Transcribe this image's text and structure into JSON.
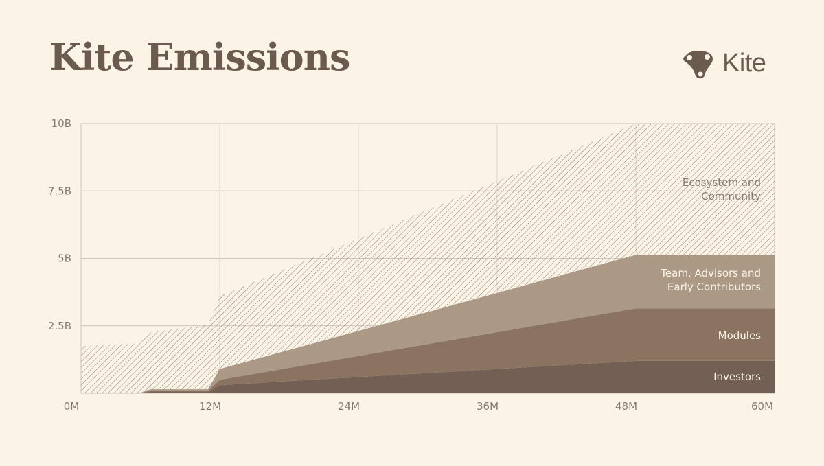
{
  "title": "Kite Emissions",
  "brand": {
    "name": "Kite",
    "logo_icon": "kite-logo-icon"
  },
  "colors": {
    "background": "#faf3e6",
    "text": "#6b5a4e",
    "tick": "#8a7b70",
    "grid": "#cfc6bb",
    "investors": "#735f53",
    "modules": "#8a7360",
    "team": "#ab9986",
    "ecosystem_hatch": "#8c7d70"
  },
  "chart_data": {
    "type": "area",
    "stacked": true,
    "x_tick_labels": [
      "0M",
      "12M",
      "24M",
      "36M",
      "48M",
      "60M"
    ],
    "y_tick_labels": [
      "2.5B",
      "5B",
      "7.5B",
      "10B"
    ],
    "xlim": [
      0,
      60
    ],
    "ylim": [
      0,
      10
    ],
    "x": [
      0,
      5,
      6,
      11,
      12,
      48,
      60
    ],
    "series": [
      {
        "name": "Investors",
        "values": [
          0,
          0,
          0.05,
          0.05,
          0.3,
          1.2,
          1.2
        ]
      },
      {
        "name": "Modules",
        "values": [
          0,
          0,
          0.05,
          0.05,
          0.2,
          1.95,
          1.95
        ]
      },
      {
        "name": "Team, Advisors and Early Contributors",
        "values": [
          0,
          0,
          0.05,
          0.05,
          0.4,
          1.98,
          1.98
        ]
      },
      {
        "name": "Ecosystem and Community",
        "values": [
          1.75,
          1.85,
          2.1,
          2.4,
          2.7,
          4.87,
          4.87
        ]
      }
    ],
    "grid": true
  }
}
